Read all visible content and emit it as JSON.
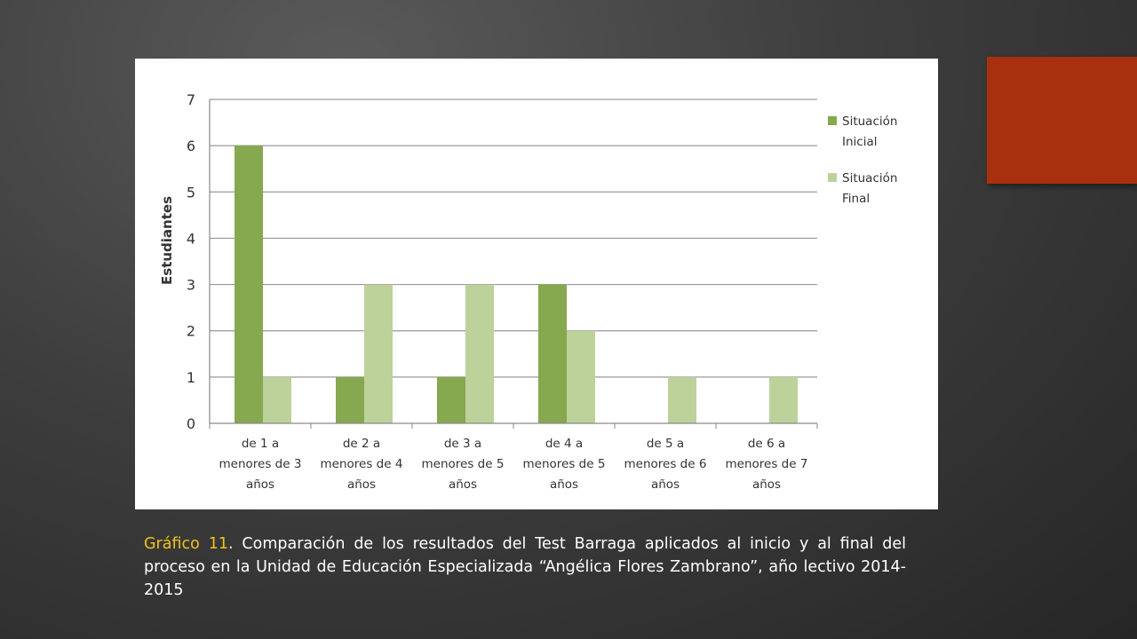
{
  "colors": {
    "accent": "#A8300F",
    "caption_label": "#F0C419",
    "series_inicial": "#86A84E",
    "series_final": "#BDD19B",
    "grid": "#9A9A9A"
  },
  "caption": {
    "label": "Gráfico 11",
    "text": ". Comparación de los resultados del Test Barraga aplicados al inicio y al final del proceso en la Unidad de Educación Especializada “Angélica Flores Zambrano”, año lectivo 2014- 2015"
  },
  "chart_data": {
    "type": "bar",
    "categories": [
      [
        "de 1 a",
        "menores de 3",
        "años"
      ],
      [
        "de 2 a",
        "menores de 4",
        "años"
      ],
      [
        "de 3 a",
        "menores de 5",
        "años"
      ],
      [
        "de 4 a",
        "menores de 5",
        "años"
      ],
      [
        "de 5 a",
        "menores de 6",
        "años"
      ],
      [
        "de 6 a",
        "menores de 7",
        "años"
      ]
    ],
    "series": [
      {
        "name": [
          "Situación",
          "Inicial"
        ],
        "color": "#86A84E",
        "values": [
          6,
          1,
          1,
          3,
          0,
          0
        ]
      },
      {
        "name": [
          "Situación",
          "Final"
        ],
        "color": "#BDD19B",
        "values": [
          1,
          3,
          3,
          2,
          1,
          1
        ]
      }
    ],
    "ylabel": "Estudiantes",
    "xlabel": "",
    "ylim": [
      0,
      7
    ],
    "yticks": [
      "0",
      "1",
      "2",
      "3",
      "4",
      "5",
      "6",
      "7"
    ],
    "grid": true,
    "legend_position": "right"
  }
}
